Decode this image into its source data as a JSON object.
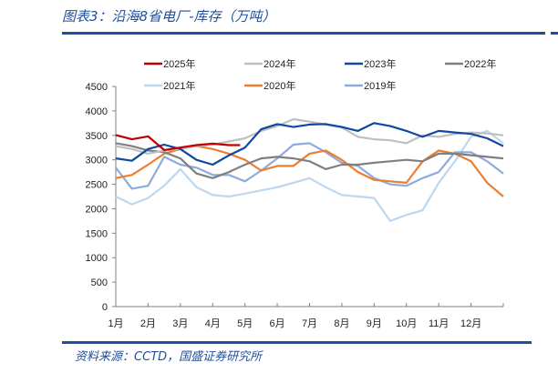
{
  "title": "图表3：沿海8省电厂-库存（万吨）",
  "source": "资料来源：CCTD，国盛证券研究所",
  "chart_data": {
    "type": "line",
    "title": "沿海8省电厂-库存（万吨）",
    "xlabel": "",
    "ylabel": "",
    "ylim": [
      0,
      4500
    ],
    "yticks": [
      0,
      500,
      1000,
      1500,
      2000,
      2500,
      3000,
      3500,
      4000,
      4500
    ],
    "ytick_labels": [
      "0",
      "500",
      "1000",
      "1500",
      "2000",
      "2500",
      "3000",
      "3500",
      "4000",
      "4500"
    ],
    "xlim": [
      0,
      12
    ],
    "xtick_labels": [
      "1月",
      "2月",
      "3月",
      "4月",
      "5月",
      "6月",
      "7月",
      "8月",
      "9月",
      "10月",
      "11月",
      "12月"
    ],
    "x_unit": "month index (0 = Jan 1, 12 = Dec 31)",
    "legend_position": "top",
    "grid": false,
    "series": [
      {
        "name": "2025年",
        "color": "#c00000",
        "x": [
          0,
          0.5,
          1,
          1.5,
          2,
          2.5,
          3,
          3.5,
          3.85
        ],
        "values": [
          3505,
          3420,
          3480,
          3200,
          3250,
          3300,
          3330,
          3300,
          3300
        ]
      },
      {
        "name": "2024年",
        "color": "#bfbfbf",
        "x": "half-month",
        "values": [
          3280,
          3220,
          3125,
          3190,
          3220,
          3280,
          3310,
          3375,
          3440,
          3590,
          3690,
          3830,
          3780,
          3720,
          3660,
          3470,
          3420,
          3400,
          3340,
          3500,
          3470,
          3530,
          3560,
          3540,
          3500
        ]
      },
      {
        "name": "2023年",
        "color": "#0f47a1",
        "x": "half-month",
        "values": [
          3030,
          2980,
          3220,
          3310,
          3220,
          3000,
          2900,
          3090,
          3250,
          3625,
          3730,
          3670,
          3720,
          3730,
          3670,
          3590,
          3750,
          3690,
          3590,
          3470,
          3590,
          3560,
          3530,
          3440,
          3280
        ]
      },
      {
        "name": "2022年",
        "color": "#7f7f7f",
        "x": "half-month",
        "values": [
          3340,
          3280,
          3190,
          3155,
          3030,
          2720,
          2625,
          2750,
          2900,
          3030,
          3060,
          3030,
          2970,
          2810,
          2900,
          2900,
          2940,
          2970,
          3000,
          2970,
          3125,
          3125,
          3095,
          3060,
          3030
        ]
      },
      {
        "name": "2021年",
        "color": "#bdd7ee",
        "x": "half-month",
        "values": [
          2250,
          2090,
          2220,
          2470,
          2810,
          2440,
          2280,
          2250,
          2310,
          2375,
          2440,
          2530,
          2625,
          2440,
          2280,
          2250,
          2220,
          1750,
          1875,
          1970,
          2530,
          2970,
          3470,
          3590,
          3340
        ]
      },
      {
        "name": "2020年",
        "color": "#ed7d31",
        "x": "half-month",
        "values": [
          2625,
          2690,
          2900,
          3125,
          3220,
          3280,
          3220,
          3125,
          3000,
          2780,
          2875,
          2875,
          3125,
          3190,
          3000,
          2750,
          2590,
          2560,
          2530,
          2970,
          3190,
          3125,
          2970,
          2530,
          2250
        ]
      },
      {
        "name": "2019年",
        "color": "#8faadc",
        "x": "half-month",
        "values": [
          2840,
          2410,
          2470,
          3060,
          2900,
          2840,
          2690,
          2690,
          2560,
          2780,
          3030,
          3310,
          3340,
          3155,
          2940,
          2875,
          2625,
          2500,
          2470,
          2625,
          2750,
          3155,
          3155,
          2970,
          2720
        ]
      }
    ]
  }
}
